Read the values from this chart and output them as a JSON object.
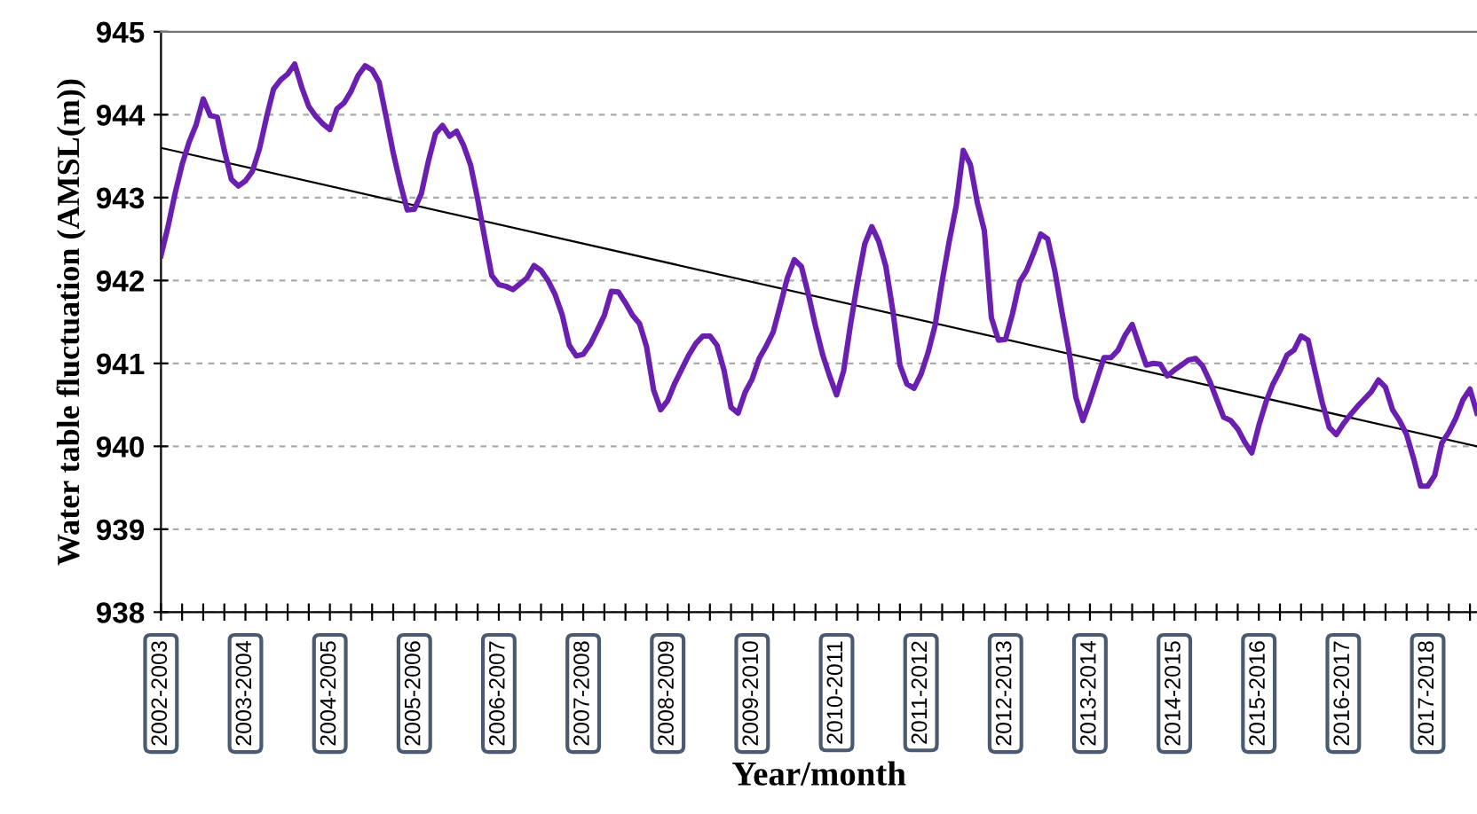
{
  "chart_data": {
    "type": "line",
    "xlabel": "Year/month",
    "ylabel": "Water table fluctuation (AMSL(m))",
    "ylim": [
      938,
      945
    ],
    "yticks": [
      938,
      939,
      940,
      941,
      942,
      943,
      944,
      945
    ],
    "categories": [
      "2002-2003",
      null,
      null,
      null,
      null,
      null,
      null,
      null,
      null,
      null,
      null,
      null,
      "2003-2004",
      null,
      null,
      null,
      null,
      null,
      null,
      null,
      null,
      null,
      null,
      null,
      "2004-2005",
      null,
      null,
      null,
      null,
      null,
      null,
      null,
      null,
      null,
      null,
      null,
      "2005-2006",
      null,
      null,
      null,
      null,
      null,
      null,
      null,
      null,
      null,
      null,
      null,
      "2006-2007",
      null,
      null,
      null,
      null,
      null,
      null,
      null,
      null,
      null,
      null,
      null,
      "2007-2008",
      null,
      null,
      null,
      null,
      null,
      null,
      null,
      null,
      null,
      null,
      null,
      "2008-2009",
      null,
      null,
      null,
      null,
      null,
      null,
      null,
      null,
      null,
      null,
      null,
      "2009-2010",
      null,
      null,
      null,
      null,
      null,
      null,
      null,
      null,
      null,
      null,
      null,
      "2010-2011",
      null,
      null,
      null,
      null,
      null,
      null,
      null,
      null,
      null,
      null,
      null,
      "2011-2012",
      null,
      null,
      null,
      null,
      null,
      null,
      null,
      null,
      null,
      null,
      null,
      "2012-2013",
      null,
      null,
      null,
      null,
      null,
      null,
      null,
      null,
      null,
      null,
      null,
      "2013-2014",
      null,
      null,
      null,
      null,
      null,
      null,
      null,
      null,
      null,
      null,
      null,
      "2014-2015",
      null,
      null,
      null,
      null,
      null,
      null,
      null,
      null,
      null,
      null,
      null,
      "2015-2016",
      null,
      null,
      null,
      null,
      null,
      null,
      null,
      null,
      null,
      null,
      null,
      "2016-2017",
      null,
      null,
      null,
      null,
      null,
      null,
      null,
      null,
      null,
      null,
      null,
      "2017-2018",
      null,
      null,
      null,
      null,
      null,
      null,
      null
    ],
    "grid": "y",
    "marker": "none",
    "line_style": "solid",
    "series": [
      {
        "color": "#6a1fb0",
        "values": [
          942.3,
          942.65,
          943.05,
          943.4,
          943.67,
          943.88,
          944.19,
          943.99,
          943.97,
          943.57,
          943.22,
          943.14,
          943.2,
          943.32,
          943.59,
          943.97,
          944.31,
          944.42,
          944.49,
          944.61,
          944.33,
          944.1,
          943.98,
          943.89,
          943.82,
          944.07,
          944.14,
          944.28,
          944.47,
          944.59,
          944.54,
          944.39,
          943.97,
          943.54,
          943.17,
          942.85,
          942.86,
          943.05,
          943.44,
          943.77,
          943.87,
          943.74,
          943.8,
          943.63,
          943.39,
          942.98,
          942.51,
          942.06,
          941.95,
          941.93,
          941.89,
          941.96,
          942.03,
          942.18,
          942.12,
          942.0,
          941.83,
          941.59,
          941.22,
          941.09,
          941.11,
          941.23,
          941.4,
          941.58,
          941.87,
          941.86,
          941.73,
          941.58,
          941.48,
          941.2,
          940.68,
          940.44,
          940.55,
          940.76,
          940.93,
          941.1,
          941.24,
          941.33,
          941.33,
          941.22,
          940.92,
          940.47,
          940.4,
          940.65,
          940.81,
          941.06,
          941.21,
          941.38,
          941.7,
          942.03,
          942.25,
          942.17,
          941.83,
          941.45,
          941.11,
          940.85,
          940.62,
          940.91,
          941.48,
          941.99,
          942.44,
          942.65,
          942.47,
          942.17,
          941.63,
          940.98,
          940.75,
          940.7,
          940.87,
          941.13,
          941.46,
          941.99,
          942.47,
          942.9,
          943.57,
          943.4,
          942.94,
          942.6,
          941.55,
          941.28,
          941.29,
          941.6,
          941.98,
          942.12,
          942.33,
          942.56,
          942.5,
          942.12,
          941.63,
          941.16,
          940.59,
          940.31,
          940.55,
          940.81,
          941.07,
          941.07,
          941.16,
          941.34,
          941.47,
          941.22,
          940.98,
          941.0,
          940.99,
          940.85,
          940.92,
          940.98,
          941.04,
          941.06,
          940.97,
          940.79,
          940.57,
          940.35,
          940.31,
          940.21,
          940.05,
          939.92,
          940.25,
          940.53,
          940.75,
          940.91,
          941.1,
          941.16,
          941.33,
          941.28,
          940.9,
          940.53,
          940.23,
          940.14,
          940.27,
          940.38,
          940.48,
          940.57,
          940.66,
          940.8,
          940.71,
          940.44,
          940.31,
          940.14,
          939.85,
          939.52,
          939.52,
          939.65,
          940.04,
          940.17,
          940.34,
          940.56,
          940.69,
          940.4
        ]
      },
      {
        "type": "line",
        "color": "#000000",
        "values": [
          943.6,
          null,
          null,
          null,
          null,
          null,
          null,
          null,
          null,
          null,
          null,
          null,
          null,
          null,
          null,
          null,
          null,
          null,
          null,
          null,
          null,
          null,
          null,
          null,
          null,
          null,
          null,
          null,
          null,
          null,
          null,
          null,
          null,
          null,
          null,
          null,
          null,
          null,
          null,
          null,
          null,
          null,
          null,
          null,
          null,
          null,
          null,
          null,
          null,
          null,
          null,
          null,
          null,
          null,
          null,
          null,
          null,
          null,
          null,
          null,
          null,
          null,
          null,
          null,
          null,
          null,
          null,
          null,
          null,
          null,
          null,
          null,
          null,
          null,
          null,
          null,
          null,
          null,
          null,
          null,
          null,
          null,
          null,
          null,
          null,
          null,
          null,
          null,
          null,
          null,
          null,
          null,
          null,
          null,
          null,
          null,
          null,
          null,
          null,
          null,
          null,
          null,
          null,
          null,
          null,
          null,
          null,
          null,
          null,
          null,
          null,
          null,
          null,
          null,
          null,
          null,
          null,
          null,
          null,
          null,
          null,
          null,
          null,
          null,
          null,
          null,
          null,
          null,
          null,
          null,
          null,
          null,
          null,
          null,
          null,
          null,
          null,
          null,
          null,
          null,
          null,
          null,
          null,
          null,
          null,
          null,
          null,
          null,
          null,
          null,
          null,
          null,
          null,
          null,
          null,
          null,
          null,
          null,
          null,
          null,
          null,
          null,
          null,
          null,
          null,
          null,
          null,
          null,
          null,
          null,
          null,
          null,
          null,
          null,
          null,
          null,
          null,
          null,
          null,
          null,
          null,
          null,
          null,
          null,
          null,
          null,
          null,
          940.0
        ]
      }
    ]
  }
}
